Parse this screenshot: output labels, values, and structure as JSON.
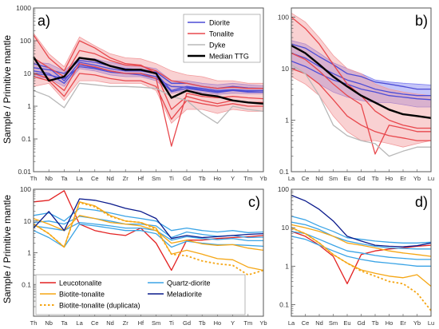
{
  "figure": {
    "ylabel": "Sample / Primitive mantle"
  },
  "chart_data": [
    {
      "panel": "a)",
      "type": "line",
      "yscale": "log",
      "ylim": [
        0.01,
        1000
      ],
      "y_ticks": [
        "0.01",
        "0.1",
        "1",
        "10",
        "100",
        "1000"
      ],
      "categories": [
        "Th",
        "Nb",
        "Ta",
        "La",
        "Ce",
        "Nd",
        "Zr",
        "Hf",
        "Sm",
        "Ti",
        "Gd",
        "Tb",
        "Ho",
        "Y",
        "Tm",
        "Yb"
      ],
      "x_tick_labels": [
        "Th",
        "Nb",
        "Ta",
        "La",
        "Ce",
        "Nd",
        "Zr",
        "Hf",
        "Sm",
        "Ti",
        "Gd",
        "Tb",
        "Ho",
        "Y",
        "Tm",
        "Yb"
      ],
      "legend": {
        "position": "top-right",
        "entries": [
          {
            "name": "Diorite",
            "color": "#4d4dd6"
          },
          {
            "name": "Tonalite",
            "color": "#e8484d"
          },
          {
            "name": "Dyke",
            "color": "#b8b8b8"
          },
          {
            "name": "Median TTG",
            "color": "#000000"
          }
        ]
      },
      "bands": [
        {
          "color": "#7f7ff0",
          "low": [
            8,
            7,
            4,
            14,
            12,
            9,
            8,
            8,
            6,
            2.5,
            3,
            2.6,
            2.3,
            2.5,
            2.4,
            2.4
          ],
          "high": [
            22,
            20,
            12,
            30,
            28,
            22,
            18,
            17,
            14,
            6,
            6,
            5,
            4.5,
            5,
            4.5,
            4.2
          ]
        },
        {
          "color": "#f29a9c",
          "low": [
            4,
            5,
            1.5,
            6,
            6,
            5,
            5,
            5,
            3,
            0.3,
            0.8,
            0.8,
            0.6,
            0.8,
            0.7,
            0.7
          ],
          "high": [
            170,
            40,
            16,
            130,
            70,
            40,
            30,
            28,
            20,
            12,
            9,
            8,
            6,
            6,
            5,
            5
          ]
        }
      ],
      "series": [
        {
          "color": "#4d4dd6",
          "values": [
            20,
            15,
            6,
            22,
            18,
            14,
            12,
            12,
            10,
            3,
            4,
            3.5,
            3,
            3.2,
            3,
            3
          ]
        },
        {
          "color": "#4d4dd6",
          "values": [
            12,
            10,
            5,
            18,
            15,
            12,
            10,
            10,
            8,
            2.8,
            3.5,
            3,
            2.6,
            3,
            2.7,
            2.7
          ]
        },
        {
          "color": "#4d4dd6",
          "values": [
            15,
            13,
            10,
            25,
            22,
            17,
            14,
            13,
            11,
            5,
            5,
            4,
            3.5,
            4,
            3.6,
            3.5
          ]
        },
        {
          "color": "#4d4dd6",
          "values": [
            10,
            9,
            7,
            16,
            14,
            11,
            10,
            9,
            7,
            4,
            3.8,
            3.2,
            2.8,
            3.1,
            2.8,
            2.7
          ]
        },
        {
          "color": "#e8484d",
          "values": [
            150,
            30,
            12,
            100,
            60,
            30,
            20,
            18,
            10,
            0.8,
            2,
            1.5,
            1.2,
            1.5,
            1.3,
            1.3
          ]
        },
        {
          "color": "#e8484d",
          "values": [
            8,
            6,
            2,
            10,
            9,
            7,
            6,
            6,
            4,
            0.4,
            1.5,
            1.2,
            1,
            1.2,
            1,
            1
          ]
        },
        {
          "color": "#e8484d",
          "values": [
            30,
            15,
            8,
            50,
            40,
            25,
            18,
            17,
            12,
            6,
            5,
            4,
            3.5,
            3.8,
            3.5,
            3.5
          ]
        },
        {
          "color": "#e8484d",
          "values": [
            10,
            7,
            3,
            20,
            16,
            12,
            10,
            10,
            7,
            0.06,
            2.5,
            2,
            1.8,
            2,
            1.8,
            1.7
          ]
        },
        {
          "color": "#b8b8b8",
          "values": [
            3,
            2,
            0.9,
            5,
            4.5,
            4,
            4,
            3.8,
            3.5,
            2,
            1.5,
            0.6,
            0.3,
            1,
            0.8,
            0.7
          ]
        }
      ],
      "median": {
        "name": "Median TTG",
        "values": [
          32,
          6,
          8,
          30,
          26,
          17,
          13,
          13,
          10,
          1.8,
          3,
          2.3,
          2,
          1.5,
          1.3,
          1.2
        ]
      }
    },
    {
      "panel": "b)",
      "type": "line",
      "yscale": "log",
      "ylim": [
        0.1,
        150
      ],
      "y_ticks": [
        "0.1",
        "1",
        "10",
        "100"
      ],
      "categories": [
        "La",
        "Ce",
        "Nd",
        "Sm",
        "Eu",
        "Gd",
        "Tb",
        "Ho",
        "Er",
        "Yb",
        "Lu"
      ],
      "x_tick_labels": [
        "La",
        "Ce",
        "Nd",
        "Sm",
        "Eu",
        "Gd",
        "Tb",
        "Ho",
        "Er",
        "Yb",
        "Lu"
      ],
      "bands": [
        {
          "color": "#7f7ff0",
          "low": [
            10,
            8,
            5,
            3.5,
            2.8,
            2.4,
            2.2,
            2.2,
            2,
            1.8,
            1.8
          ],
          "high": [
            35,
            30,
            20,
            13,
            10,
            8,
            6,
            5.5,
            5.2,
            5,
            4.8
          ]
        },
        {
          "color": "#f29a9c",
          "low": [
            7,
            5,
            3,
            1.2,
            0.6,
            0.4,
            0.4,
            0.35,
            0.3,
            0.35,
            0.4
          ],
          "high": [
            120,
            80,
            40,
            18,
            10,
            8,
            5,
            4,
            3.5,
            3.2,
            3
          ]
        }
      ],
      "series": [
        {
          "color": "#4d4dd6",
          "values": [
            30,
            25,
            17,
            12,
            8,
            7,
            5.5,
            5,
            4.5,
            4,
            4
          ]
        },
        {
          "color": "#4d4dd6",
          "values": [
            20,
            16,
            11,
            8,
            6,
            5,
            4,
            3.5,
            3.2,
            3,
            3
          ]
        },
        {
          "color": "#4d4dd6",
          "values": [
            14,
            11,
            8,
            6,
            5,
            4,
            3.5,
            3,
            2.8,
            2.6,
            2.5
          ]
        },
        {
          "color": "#e8484d",
          "values": [
            100,
            60,
            30,
            12,
            5,
            3,
            1.5,
            1,
            0.8,
            0.7,
            0.7
          ]
        },
        {
          "color": "#e8484d",
          "values": [
            20,
            15,
            9,
            5,
            3,
            2,
            0.22,
            0.8,
            0.7,
            0.6,
            0.6
          ]
        },
        {
          "color": "#e8484d",
          "values": [
            10,
            8,
            5,
            2.5,
            1.2,
            0.8,
            0.6,
            0.5,
            0.45,
            0.4,
            0.4
          ]
        },
        {
          "color": "#b8b8b8",
          "values": [
            12,
            8,
            3,
            0.8,
            0.5,
            0.4,
            0.35,
            0.2,
            0.25,
            0.3,
            0.3
          ]
        }
      ],
      "median": {
        "name": "Median TTG",
        "values": [
          28,
          20,
          12,
          7,
          4.5,
          3,
          2.2,
          1.6,
          1.3,
          1.2,
          1.1
        ]
      }
    },
    {
      "panel": "c)",
      "type": "line",
      "yscale": "log",
      "ylim": [
        0.01,
        100
      ],
      "y_ticks": [
        "0.1",
        "1",
        "10",
        "100"
      ],
      "categories": [
        "Th",
        "Nb",
        "Ta",
        "La",
        "Ce",
        "Nd",
        "Zr",
        "Hf",
        "Sm",
        "Ti",
        "Gd",
        "Tb",
        "Ho",
        "Y",
        "Tm",
        "Yb"
      ],
      "x_tick_labels": [
        "Th",
        "Nb",
        "Ta",
        "La",
        "Ce",
        "Nd",
        "Zr",
        "Hf",
        "Sm",
        "Ti",
        "Gd",
        "Tb",
        "Ho",
        "Y",
        "Tm",
        "Yb"
      ],
      "legend": {
        "position": "bottom-left",
        "entries": [
          {
            "name": "Leucotonalite",
            "color": "#e32222",
            "style": "solid"
          },
          {
            "name": "Quartz-diorite",
            "color": "#3ba4e6",
            "style": "solid"
          },
          {
            "name": "Biotite-tonalite",
            "color": "#f5a614",
            "style": "solid"
          },
          {
            "name": "Meladiorite",
            "color": "#0a1a8c",
            "style": "solid"
          },
          {
            "name": "Biotite-tonalite (duplicata)",
            "color": "#f5a614",
            "style": "dotted"
          }
        ]
      },
      "series": [
        {
          "name": "Leucotonalite",
          "color": "#e32222",
          "style": "solid",
          "values": [
            40,
            45,
            90,
            8,
            5,
            4,
            3.5,
            6,
            2,
            0.28,
            2.5,
            2.5,
            2.8,
            3,
            3.2,
            3.5
          ]
        },
        {
          "name": "Quartz-diorite",
          "color": "#3ba4e6",
          "style": "solid",
          "values": [
            15,
            18,
            10,
            25,
            22,
            18,
            14,
            12,
            10,
            5,
            6,
            5,
            4.5,
            5,
            4.3,
            4.5
          ]
        },
        {
          "name": "Quartz-diorite",
          "color": "#3ba4e6",
          "style": "solid",
          "values": [
            9,
            10,
            8,
            14,
            12,
            10,
            8,
            8,
            7,
            3,
            4.5,
            3.8,
            3.3,
            3.5,
            3,
            3.1
          ]
        },
        {
          "name": "Quartz-diorite",
          "color": "#3ba4e6",
          "style": "solid",
          "values": [
            7,
            6,
            5,
            9,
            8,
            7,
            6,
            6,
            5,
            2.5,
            3.2,
            2.8,
            2.6,
            2.8,
            2.4,
            2.4
          ]
        },
        {
          "name": "Quartz-diorite",
          "color": "#3ba4e6",
          "style": "solid",
          "values": [
            5,
            3,
            1.5,
            8,
            7,
            6,
            5,
            5,
            4,
            1.5,
            2.3,
            2,
            1.8,
            1.8,
            1.7,
            1.6
          ]
        },
        {
          "name": "Biotite-tonalite",
          "color": "#f5a614",
          "style": "solid",
          "values": [
            8,
            4,
            1.5,
            40,
            30,
            15,
            10,
            9,
            6,
            0.9,
            1.2,
            0.9,
            0.65,
            0.6,
            0.35,
            0.28
          ]
        },
        {
          "name": "Biotite-tonalite",
          "color": "#f5a614",
          "style": "solid",
          "values": [
            12,
            8,
            5,
            15,
            12,
            9,
            8,
            7,
            5,
            2,
            2.5,
            1.9,
            1.7,
            1.8,
            1.4,
            1.2
          ]
        },
        {
          "name": "Meladiorite",
          "color": "#0a1a8c",
          "style": "solid",
          "values": [
            6,
            20,
            5,
            50,
            45,
            35,
            25,
            20,
            12,
            2.8,
            3.5,
            3,
            3.2,
            3.5,
            3.8,
            4
          ]
        },
        {
          "name": "Biotite-tonalite (duplicata)",
          "color": "#f5a614",
          "style": "dotted",
          "values": [
            8,
            4,
            1.5,
            38,
            28,
            14,
            10,
            9,
            5.5,
            0.9,
            0.8,
            0.55,
            0.45,
            0.4,
            0.2,
            0.28
          ]
        }
      ]
    },
    {
      "panel": "d)",
      "type": "line",
      "yscale": "log",
      "ylim": [
        0.05,
        100
      ],
      "y_ticks": [
        "0.1",
        "1",
        "10",
        "100"
      ],
      "categories": [
        "La",
        "Ce",
        "Nd",
        "Sm",
        "Eu",
        "Gd",
        "Tb",
        "Ho",
        "Er",
        "Yb",
        "Lu"
      ],
      "x_tick_labels": [
        "La",
        "Ce",
        "Nd",
        "Sm",
        "Eu",
        "Gd",
        "Tb",
        "Ho",
        "Er",
        "Yb",
        "Lu"
      ],
      "series": [
        {
          "name": "Leucotonalite",
          "color": "#e32222",
          "style": "solid",
          "values": [
            8,
            6,
            3.5,
            1.8,
            0.35,
            2,
            2.5,
            2.8,
            3,
            3.3,
            3.5
          ]
        },
        {
          "name": "Quartz-diorite",
          "color": "#3ba4e6",
          "style": "solid",
          "values": [
            20,
            16,
            11,
            8,
            5.5,
            5,
            4.5,
            4.2,
            4,
            4,
            4.2
          ]
        },
        {
          "name": "Quartz-diorite",
          "color": "#3ba4e6",
          "style": "solid",
          "values": [
            14,
            12,
            9,
            6,
            4.5,
            3.8,
            3.3,
            3,
            2.9,
            2.8,
            2.8
          ]
        },
        {
          "name": "Quartz-diorite",
          "color": "#3ba4e6",
          "style": "solid",
          "values": [
            8,
            7,
            5,
            3.5,
            2.5,
            2.2,
            1.9,
            1.7,
            1.6,
            1.5,
            1.5
          ]
        },
        {
          "name": "Quartz-diorite",
          "color": "#3ba4e6",
          "style": "solid",
          "values": [
            6,
            5,
            3.5,
            2.5,
            1.8,
            1.5,
            1.3,
            1.2,
            1.1,
            1,
            1
          ]
        },
        {
          "name": "Biotite-tonalite",
          "color": "#f5a614",
          "style": "solid",
          "values": [
            10,
            7,
            4,
            2,
            1.2,
            0.8,
            0.65,
            0.55,
            0.5,
            0.6,
            0.3
          ]
        },
        {
          "name": "Biotite-tonalite",
          "color": "#f5a614",
          "style": "solid",
          "values": [
            12,
            10,
            8,
            6,
            4,
            3.5,
            3,
            2.5,
            2.2,
            2,
            1.8
          ]
        },
        {
          "name": "Meladiorite",
          "color": "#0a1a8c",
          "style": "solid",
          "values": [
            70,
            50,
            30,
            15,
            6,
            4.5,
            3.5,
            3.3,
            3.2,
            3.4,
            4
          ]
        },
        {
          "name": "Biotite-tonalite (duplicata)",
          "color": "#f5a614",
          "style": "dotted",
          "values": [
            10,
            7,
            4,
            2,
            1.2,
            0.75,
            0.55,
            0.4,
            0.35,
            0.2,
            0.07
          ]
        }
      ]
    }
  ]
}
